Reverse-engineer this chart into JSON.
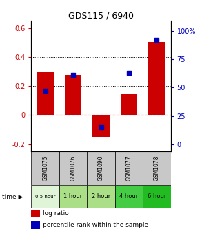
{
  "title": "GDS115 / 6940",
  "categories": [
    "GSM1075",
    "GSM1076",
    "GSM1090",
    "GSM1077",
    "GSM1078"
  ],
  "time_labels": [
    "0.5 hour",
    "1 hour",
    "2 hour",
    "4 hour",
    "6 hour"
  ],
  "time_colors": [
    "#e0f5d8",
    "#aadf88",
    "#aadf88",
    "#44cc44",
    "#22bb22"
  ],
  "log_ratios": [
    0.295,
    0.275,
    -0.155,
    0.15,
    0.505
  ],
  "percentile_ranks": [
    47,
    61,
    15,
    63,
    92
  ],
  "bar_color": "#cc0000",
  "dot_color": "#0000bb",
  "ylim_left": [
    -0.25,
    0.65
  ],
  "ylim_right": [
    -6.25,
    108.75
  ],
  "yticks_left": [
    -0.2,
    0.0,
    0.2,
    0.4,
    0.6
  ],
  "yticks_right": [
    0,
    25,
    50,
    75,
    100
  ],
  "ytick_labels_left": [
    "-0.2",
    "0",
    "0.2",
    "0.4",
    "0.6"
  ],
  "ytick_labels_right": [
    "0",
    "25",
    "50",
    "75",
    "100%"
  ],
  "hline_zero_color": "#cc0000",
  "hlines_dotted": [
    0.2,
    0.4
  ],
  "background_color": "#ffffff",
  "gsm_bg_color": "#c8c8c8",
  "bar_width": 0.6,
  "legend_red": "log ratio",
  "legend_blue": "percentile rank within the sample"
}
